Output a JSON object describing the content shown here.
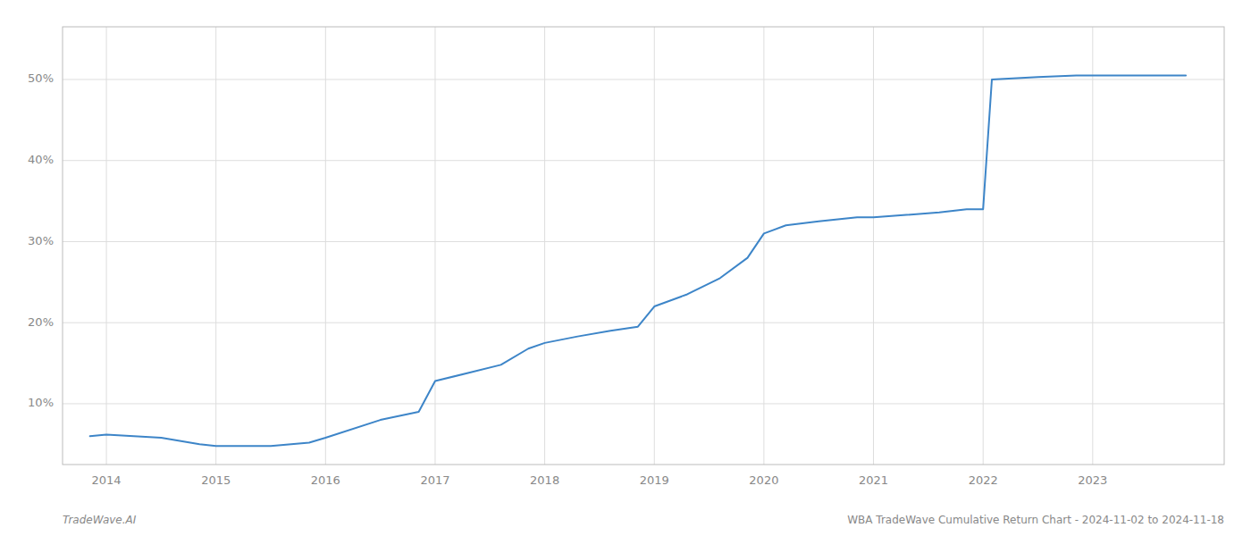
{
  "chart_data": {
    "type": "line",
    "x": [
      2013.85,
      2014.0,
      2014.5,
      2014.85,
      2015.0,
      2015.5,
      2015.85,
      2016.0,
      2016.5,
      2016.85,
      2017.0,
      2017.3,
      2017.6,
      2017.85,
      2018.0,
      2018.3,
      2018.6,
      2018.85,
      2019.0,
      2019.3,
      2019.6,
      2019.85,
      2020.0,
      2020.2,
      2020.5,
      2020.85,
      2021.0,
      2021.3,
      2021.6,
      2021.85,
      2022.0,
      2022.08,
      2022.5,
      2022.85,
      2023.0,
      2023.5,
      2023.85
    ],
    "values": [
      0.06,
      0.062,
      0.058,
      0.05,
      0.048,
      0.048,
      0.052,
      0.058,
      0.08,
      0.09,
      0.128,
      0.138,
      0.148,
      0.168,
      0.175,
      0.183,
      0.19,
      0.195,
      0.22,
      0.235,
      0.255,
      0.28,
      0.31,
      0.32,
      0.325,
      0.33,
      0.33,
      0.333,
      0.336,
      0.34,
      0.34,
      0.5,
      0.503,
      0.505,
      0.505,
      0.505,
      0.505
    ],
    "color": "#3d85c8",
    "xlim": [
      2013.6,
      2024.2
    ],
    "ylim": [
      0.025,
      0.565
    ],
    "xticks": [
      2014,
      2015,
      2016,
      2017,
      2018,
      2019,
      2020,
      2021,
      2022,
      2023
    ],
    "yticks": [
      {
        "value": 0.1,
        "label": "10%"
      },
      {
        "value": 0.2,
        "label": "20%"
      },
      {
        "value": 0.3,
        "label": "30%"
      },
      {
        "value": 0.4,
        "label": "40%"
      },
      {
        "value": 0.5,
        "label": "50%"
      }
    ],
    "grid": true,
    "annotations": [
      "TradeWave.AI",
      "WBA TradeWave Cumulative Return Chart - 2024-11-02 to 2024-11-18"
    ]
  }
}
